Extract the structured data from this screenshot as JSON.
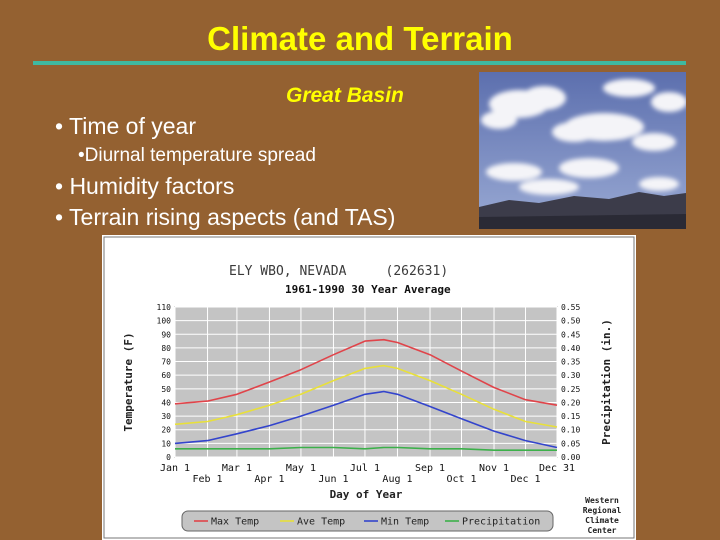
{
  "slide": {
    "title": "Climate and Terrain",
    "subtitle": "Great Basin",
    "bullets": [
      {
        "text": "• Time of year",
        "level": 1
      },
      {
        "text": "•Diurnal temperature spread",
        "level": 2
      },
      {
        "text": "• Humidity factors",
        "level": 1
      },
      {
        "text": "• Terrain rising aspects (and TAS)",
        "level": 1
      }
    ],
    "colors": {
      "background": "#946131",
      "title": "#ffff00",
      "rule": "#3fb9a0",
      "text": "#ffffff"
    }
  },
  "chart_data": {
    "type": "line",
    "title": "ELY WBO, NEVADA     (262631)",
    "subtitle": "1961-1990 30 Year Average",
    "xlabel": "Day of Year",
    "ylabel": "Temperature (F)",
    "y2label": "Precipitation (in.)",
    "ylim": [
      0,
      110
    ],
    "y2lim": [
      0,
      0.55
    ],
    "yticks": [
      "0",
      "10",
      "20",
      "30",
      "40",
      "50",
      "60",
      "70",
      "80",
      "90",
      "100",
      "110"
    ],
    "y2ticks": [
      "0.00",
      "0.05",
      "0.10",
      "0.15",
      "0.20",
      "0.25",
      "0.30",
      "0.35",
      "0.40",
      "0.45",
      "0.50",
      "0.55"
    ],
    "xticks_top": [
      "Jan 1",
      "Mar 1",
      "May 1",
      "Jul 1",
      "Sep 1",
      "Nov 1",
      "Dec 31"
    ],
    "xticks_bottom": [
      "Feb 1",
      "Apr 1",
      "Jun 1",
      "Aug 1",
      "Oct 1",
      "Dec 1"
    ],
    "xtick_days": {
      "Jan 1": 1,
      "Feb 1": 32,
      "Mar 1": 60,
      "Apr 1": 91,
      "May 1": 121,
      "Jun 1": 152,
      "Jul 1": 182,
      "Aug 1": 213,
      "Sep 1": 244,
      "Oct 1": 274,
      "Nov 1": 305,
      "Dec 1": 335,
      "Dec 31": 365
    },
    "grid": true,
    "legend_placement": "bottom",
    "credit": [
      "Western",
      "Regional",
      "Climate",
      "Center"
    ],
    "x_days": [
      1,
      32,
      60,
      91,
      121,
      152,
      182,
      200,
      213,
      244,
      274,
      305,
      335,
      365
    ],
    "series": [
      {
        "name": "Max Temp",
        "color": "#e0444a",
        "axis": "left",
        "values": [
          39,
          41,
          46,
          55,
          64,
          75,
          85,
          86,
          84,
          75,
          63,
          51,
          42,
          38
        ]
      },
      {
        "name": "Ave Temp",
        "color": "#e8e03a",
        "axis": "left",
        "values": [
          24,
          26,
          31,
          38,
          46,
          56,
          65,
          67,
          65,
          56,
          46,
          35,
          26,
          22
        ]
      },
      {
        "name": "Min Temp",
        "color": "#3344cc",
        "axis": "left",
        "values": [
          10,
          12,
          17,
          23,
          30,
          38,
          46,
          48,
          46,
          37,
          28,
          19,
          12,
          7
        ]
      },
      {
        "name": "Precipitation",
        "color": "#3cb04a",
        "axis": "right",
        "values": [
          0.03,
          0.03,
          0.03,
          0.03,
          0.035,
          0.035,
          0.03,
          0.035,
          0.035,
          0.03,
          0.03,
          0.025,
          0.025,
          0.025
        ]
      }
    ]
  }
}
